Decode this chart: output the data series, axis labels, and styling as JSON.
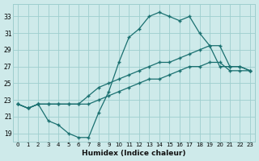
{
  "xlabel": "Humidex (Indice chaleur)",
  "ylabel": "",
  "bg_color": "#ceeaea",
  "grid_color": "#9ecece",
  "line_color": "#1a7070",
  "marker": "+",
  "x": [
    0,
    1,
    2,
    3,
    4,
    5,
    6,
    7,
    8,
    9,
    10,
    11,
    12,
    13,
    14,
    15,
    16,
    17,
    18,
    19,
    20,
    21,
    22,
    23
  ],
  "y_max": [
    22.5,
    22.0,
    22.5,
    20.5,
    20.0,
    19.0,
    18.5,
    18.5,
    21.5,
    24.0,
    27.5,
    30.5,
    31.5,
    33.0,
    33.5,
    33.0,
    32.5,
    33.0,
    31.0,
    29.5,
    27.0,
    27.0,
    27.0,
    26.5
  ],
  "y_mean": [
    22.5,
    22.0,
    22.5,
    22.5,
    22.5,
    22.5,
    22.5,
    23.5,
    24.5,
    25.0,
    25.5,
    26.0,
    26.5,
    27.0,
    27.5,
    27.5,
    28.0,
    28.5,
    29.0,
    29.5,
    29.5,
    27.0,
    27.0,
    26.5
  ],
  "y_min": [
    22.5,
    22.0,
    22.5,
    22.5,
    22.5,
    22.5,
    22.5,
    22.5,
    23.0,
    23.5,
    24.0,
    24.5,
    25.0,
    25.5,
    25.5,
    26.0,
    26.5,
    27.0,
    27.0,
    27.5,
    27.5,
    26.5,
    26.5,
    26.5
  ],
  "ylim": [
    18.0,
    34.5
  ],
  "yticks": [
    19,
    21,
    23,
    25,
    27,
    29,
    31,
    33
  ],
  "xticks": [
    0,
    1,
    2,
    3,
    4,
    5,
    6,
    7,
    8,
    9,
    10,
    11,
    12,
    13,
    14,
    15,
    16,
    17,
    18,
    19,
    20,
    21,
    22,
    23
  ],
  "xlim": [
    -0.5,
    23.5
  ]
}
